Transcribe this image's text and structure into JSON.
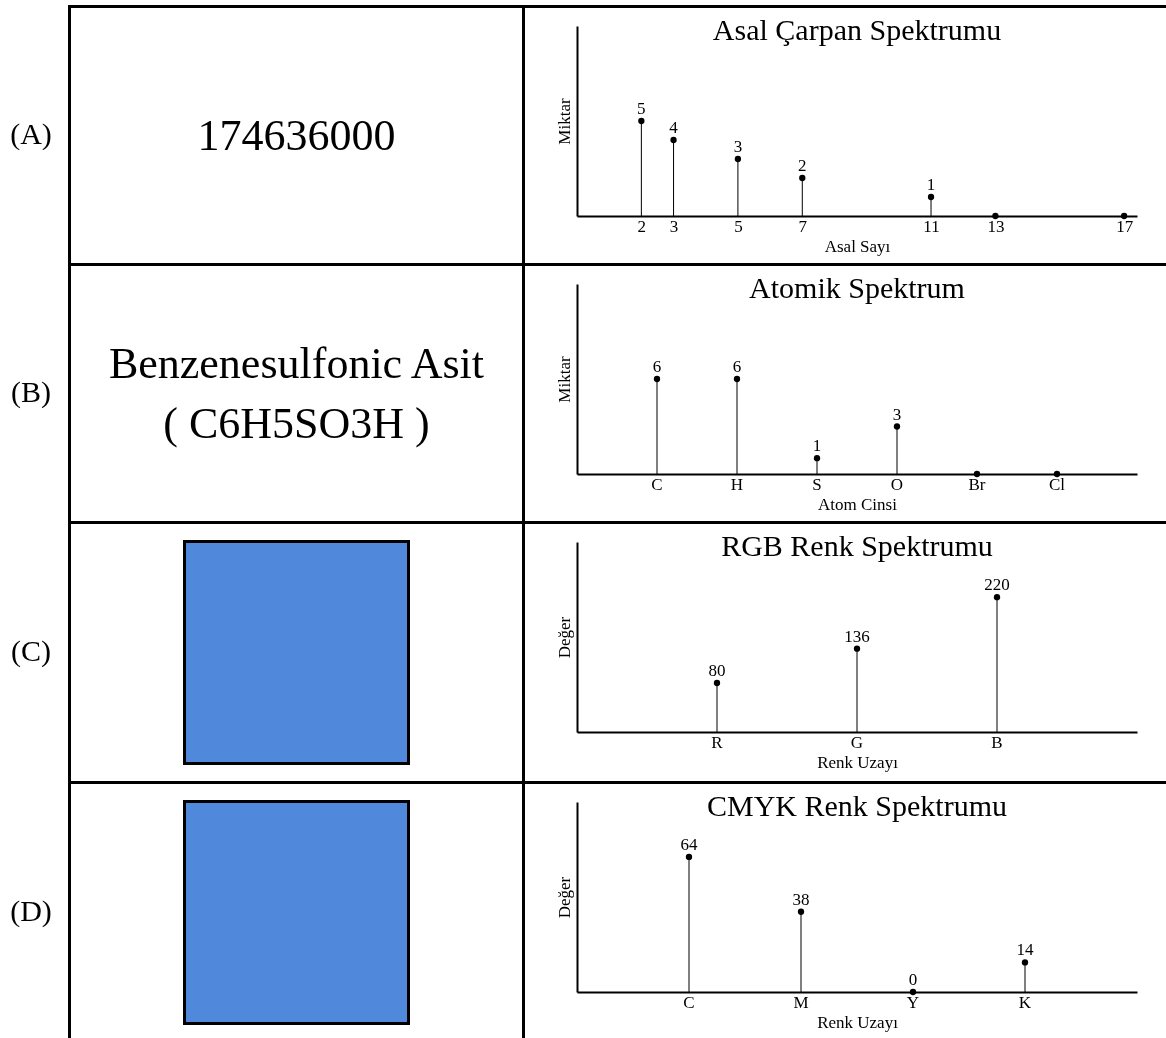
{
  "chart_data": [
    {
      "type": "other",
      "annotations": [
        "(A)",
        "174636000"
      ]
    },
    {
      "type": "lollipop",
      "title": "Asal Çarpan Spektrumu",
      "xlabel": "Asal Sayı",
      "ylabel": "Miktar",
      "x": [
        2,
        3,
        5,
        7,
        11,
        13,
        17
      ],
      "values": [
        5,
        4,
        3,
        2,
        1,
        0,
        0
      ],
      "value_labels": [
        "5",
        "4",
        "3",
        "2",
        "1",
        null,
        null
      ],
      "color": "#000000",
      "xlim": [
        0,
        17.4
      ],
      "xticks": [
        2,
        3,
        5,
        7,
        11,
        13,
        17
      ],
      "ylim": [
        0,
        10
      ],
      "tick_labels": "x"
    },
    {
      "type": "other",
      "annotations": [
        "(B)",
        "Benzenesulfonic Asit",
        "( C6H5SO3H )"
      ]
    },
    {
      "type": "lollipop",
      "title": "Atomik Spektrum",
      "xlabel": "Atom Cinsi",
      "ylabel": "Miktar",
      "categories": [
        "C",
        "H",
        "S",
        "O",
        "Br",
        "Cl"
      ],
      "values": [
        6,
        6,
        1,
        3,
        0,
        0
      ],
      "value_labels": [
        "6",
        "6",
        "1",
        "3",
        null,
        null
      ],
      "color": "#000000",
      "ylim": [
        0,
        12
      ],
      "tick_labels": "x"
    },
    {
      "type": "other",
      "annotations": [
        "(C)"
      ],
      "color": "#5089dc"
    },
    {
      "type": "lollipop",
      "title": "RGB Renk Spektrumu",
      "xlabel": "Renk Uzayı",
      "ylabel": "Değer",
      "categories": [
        "R",
        "G",
        "B"
      ],
      "values": [
        80,
        136,
        220
      ],
      "data_labels": true,
      "color": "#000000",
      "ylim": [
        0,
        310
      ],
      "tick_labels": "x"
    },
    {
      "type": "other",
      "annotations": [
        "(D)"
      ],
      "color": "#5089dc"
    },
    {
      "type": "lollipop",
      "title": "CMYK Renk Spektrumu",
      "xlabel": "Renk Uzayı",
      "ylabel": "Değer",
      "categories": [
        "C",
        "M",
        "Y",
        "K"
      ],
      "values": [
        64,
        38,
        0,
        14
      ],
      "data_labels": true,
      "color": "#000000",
      "ylim": [
        0,
        90
      ],
      "tick_labels": "x"
    }
  ]
}
